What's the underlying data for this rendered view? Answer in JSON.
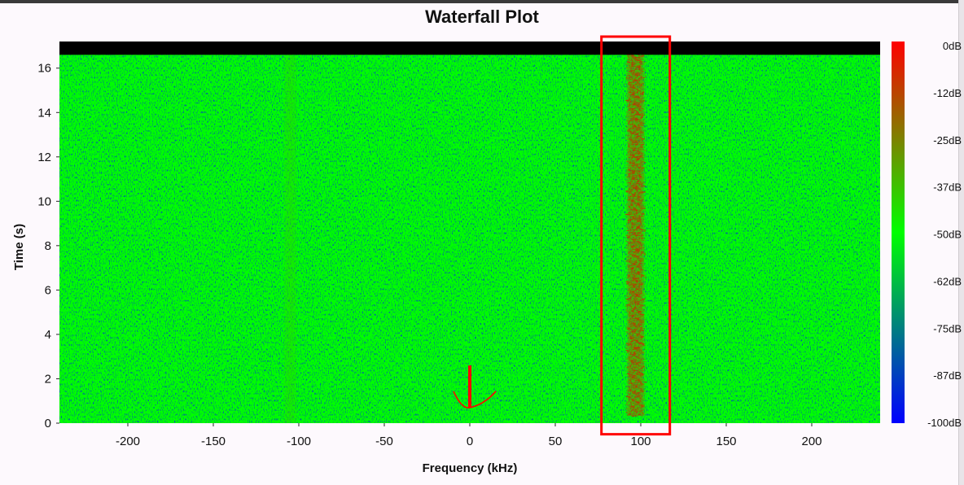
{
  "chart_data": {
    "type": "heatmap",
    "title": "Waterfall Plot",
    "xlabel": "Frequency (kHz)",
    "ylabel": "Time (s)",
    "xlim": [
      -240,
      240
    ],
    "ylim": [
      0,
      17.2
    ],
    "x_ticks": [
      -200,
      -150,
      -100,
      -50,
      0,
      50,
      100,
      150,
      200
    ],
    "y_ticks": [
      0,
      2,
      4,
      6,
      8,
      10,
      12,
      14,
      16
    ],
    "colorbar": {
      "labels": [
        "0dB",
        "-12dB",
        "-25dB",
        "-37dB",
        "-50dB",
        "-62dB",
        "-75dB",
        "-87dB",
        "-100dB"
      ],
      "range_db": [
        -100,
        0
      ],
      "colors": [
        "#ff0000",
        "#00ff00",
        "#0000ff"
      ]
    },
    "background_level_db": -50,
    "no_data_above_time_s": 16.6,
    "signals": [
      {
        "center_khz": 97,
        "width_khz": 10,
        "level_db": -25,
        "time_range_s": [
          0.3,
          16.6
        ]
      },
      {
        "center_khz": -105,
        "width_khz": 7,
        "level_db": -42,
        "time_range_s": [
          0,
          16.6
        ]
      }
    ],
    "annotations": [
      {
        "shape": "rectangle",
        "color": "#ff0000",
        "x_range_khz": [
          77,
          117
        ],
        "y_range_s": [
          -0.5,
          17.2
        ]
      },
      {
        "shape": "arrow-down",
        "color": "#ff0000",
        "x_khz": 0,
        "y_top_s": 2.6,
        "y_bottom_s": 0.7
      }
    ]
  }
}
